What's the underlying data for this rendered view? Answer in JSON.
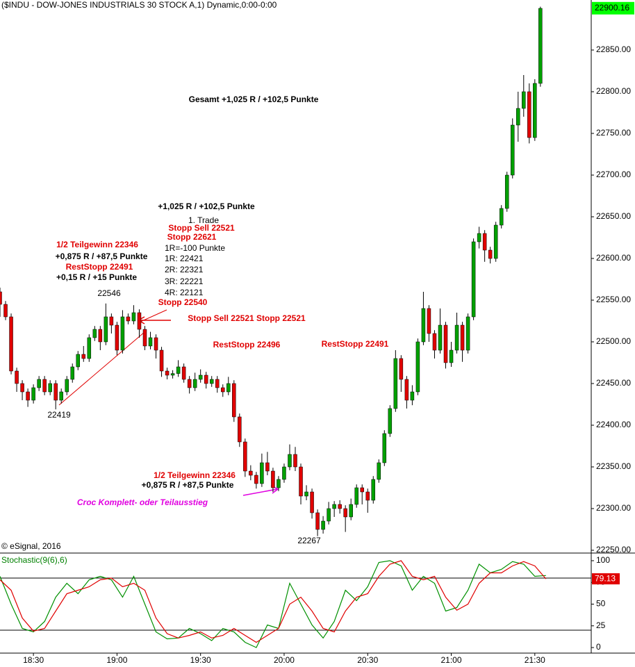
{
  "chart_data": [
    {
      "type": "candlestick",
      "title": "($INDU - DOW-JONES INDUSTRIALS 30 STOCK A,1) Dynamic,0:00-0:00",
      "up_color": "#00a000",
      "down_color": "#e00000",
      "wick_color": "#000000",
      "x": [
        "18:18",
        "18:20",
        "18:22",
        "18:24",
        "18:26",
        "18:28",
        "18:30",
        "18:32",
        "18:34",
        "18:36",
        "18:38",
        "18:40",
        "18:42",
        "18:44",
        "18:46",
        "18:48",
        "18:50",
        "18:52",
        "18:54",
        "18:56",
        "18:58",
        "19:00",
        "19:02",
        "19:04",
        "19:06",
        "19:08",
        "19:10",
        "19:12",
        "19:14",
        "19:16",
        "19:18",
        "19:20",
        "19:22",
        "19:24",
        "19:26",
        "19:28",
        "19:30",
        "19:32",
        "19:34",
        "19:36",
        "19:38",
        "19:40",
        "19:42",
        "19:44",
        "19:46",
        "19:48",
        "19:50",
        "19:52",
        "19:54",
        "19:56",
        "19:58",
        "20:00",
        "20:02",
        "20:04",
        "20:06",
        "20:08",
        "20:10",
        "20:12",
        "20:14",
        "20:16",
        "20:18",
        "20:20",
        "20:22",
        "20:24",
        "20:26",
        "20:28",
        "20:30",
        "20:32",
        "20:34",
        "20:36",
        "20:38",
        "20:40",
        "20:42",
        "20:44",
        "20:46",
        "20:48",
        "20:50",
        "20:52",
        "20:54",
        "20:56",
        "20:58",
        "21:00",
        "21:02",
        "21:04",
        "21:06",
        "21:08",
        "21:10",
        "21:12",
        "21:14",
        "21:16",
        "21:18",
        "21:20",
        "21:22",
        "21:24",
        "21:26",
        "21:28",
        "21:30",
        "21:32"
      ],
      "open": [
        22560,
        22545,
        22530,
        22465,
        22450,
        22440,
        22430,
        22445,
        22455,
        22440,
        22450,
        22430,
        22440,
        22455,
        22470,
        22485,
        22480,
        22505,
        22515,
        22500,
        22530,
        22520,
        22490,
        22530,
        22525,
        22535,
        22515,
        22495,
        22505,
        22490,
        22465,
        22460,
        22462,
        22470,
        22455,
        22445,
        22455,
        22460,
        22450,
        22455,
        22445,
        22440,
        22450,
        22410,
        22380,
        22345,
        22340,
        22330,
        22355,
        22345,
        22325,
        22335,
        22350,
        22365,
        22350,
        22315,
        22320,
        22295,
        22275,
        22285,
        22300,
        22305,
        22300,
        22290,
        22305,
        22325,
        22320,
        22310,
        22335,
        22355,
        22390,
        22420,
        22480,
        22455,
        22430,
        22440,
        22500,
        22540,
        22510,
        22490,
        22520,
        22475,
        22490,
        22520,
        22490,
        22530,
        22620,
        22630,
        22610,
        22600,
        22640,
        22660,
        22700,
        22760,
        22780,
        22800,
        22745,
        22810
      ],
      "high": [
        22565,
        22549,
        22534,
        22469,
        22454,
        22444,
        22449,
        22459,
        22459,
        22454,
        22454,
        22444,
        22459,
        22474,
        22489,
        22495,
        22509,
        22519,
        22519,
        22546,
        22534,
        22524,
        22538,
        22534,
        22544,
        22539,
        22519,
        22512,
        22509,
        22494,
        22469,
        22466,
        22478,
        22474,
        22459,
        22463,
        22467,
        22464,
        22459,
        22459,
        22449,
        22458,
        22454,
        22414,
        22384,
        22352,
        22344,
        22366,
        22368,
        22349,
        22339,
        22354,
        22377,
        22374,
        22354,
        22328,
        22324,
        22299,
        22291,
        22308,
        22309,
        22310,
        22304,
        22312,
        22329,
        22329,
        22324,
        22339,
        22359,
        22394,
        22424,
        22490,
        22484,
        22459,
        22448,
        22504,
        22560,
        22544,
        22514,
        22540,
        22524,
        22500,
        22535,
        22524,
        22534,
        22624,
        22638,
        22634,
        22614,
        22644,
        22664,
        22704,
        22768,
        22800,
        22820,
        22810,
        22815,
        22902
      ],
      "low": [
        22530,
        22526,
        22461,
        22440,
        22430,
        22422,
        22426,
        22441,
        22436,
        22436,
        22419,
        22426,
        22436,
        22451,
        22466,
        22476,
        22476,
        22501,
        22490,
        22496,
        22510,
        22484,
        22486,
        22521,
        22521,
        22505,
        22490,
        22491,
        22480,
        22458,
        22455,
        22456,
        22458,
        22451,
        22438,
        22441,
        22451,
        22444,
        22446,
        22439,
        22434,
        22436,
        22404,
        22374,
        22338,
        22334,
        22324,
        22326,
        22340,
        22320,
        22321,
        22331,
        22346,
        22345,
        22305,
        22310,
        22288,
        22267,
        22270,
        22281,
        22290,
        22294,
        22272,
        22286,
        22301,
        22305,
        22295,
        22306,
        22331,
        22351,
        22386,
        22416,
        22440,
        22420,
        22424,
        22436,
        22496,
        22500,
        22480,
        22486,
        22468,
        22470,
        22486,
        22476,
        22486,
        22526,
        22612,
        22596,
        22594,
        22596,
        22636,
        22656,
        22696,
        22740,
        22770,
        22738,
        22741,
        22806
      ],
      "close": [
        22545,
        22530,
        22465,
        22450,
        22440,
        22430,
        22445,
        22455,
        22440,
        22450,
        22430,
        22440,
        22455,
        22470,
        22485,
        22480,
        22505,
        22515,
        22500,
        22530,
        22520,
        22490,
        22530,
        22525,
        22535,
        22515,
        22495,
        22505,
        22490,
        22465,
        22460,
        22462,
        22470,
        22455,
        22445,
        22455,
        22460,
        22450,
        22455,
        22445,
        22440,
        22450,
        22410,
        22380,
        22345,
        22340,
        22330,
        22355,
        22345,
        22325,
        22335,
        22350,
        22365,
        22350,
        22315,
        22320,
        22295,
        22275,
        22285,
        22300,
        22305,
        22300,
        22290,
        22305,
        22325,
        22320,
        22310,
        22335,
        22355,
        22390,
        22420,
        22480,
        22455,
        22430,
        22440,
        22500,
        22540,
        22510,
        22490,
        22520,
        22475,
        22490,
        22520,
        22490,
        22530,
        22620,
        22630,
        22610,
        22600,
        22640,
        22660,
        22700,
        22760,
        22780,
        22800,
        22745,
        22810,
        22900
      ],
      "xlim": [
        "18:18",
        "21:50"
      ],
      "xticks": [
        "18:30",
        "19:00",
        "19:30",
        "20:00",
        "20:30",
        "21:00",
        "21:30"
      ],
      "ylim": [
        22247.5,
        22910
      ],
      "yticks": [
        {
          "value": 22250,
          "label": "22250.00"
        },
        {
          "value": 22300,
          "label": "22300.00"
        },
        {
          "value": 22350,
          "label": "22350.00"
        },
        {
          "value": 22400,
          "label": "22400.00"
        },
        {
          "value": 22450,
          "label": "22450.00"
        },
        {
          "value": 22500,
          "label": "22500.00"
        },
        {
          "value": 22550,
          "label": "22550.00"
        },
        {
          "value": 22600,
          "label": "22600.00"
        },
        {
          "value": 22650,
          "label": "22650.00"
        },
        {
          "value": 22700,
          "label": "22700.00"
        },
        {
          "value": 22750,
          "label": "22750.00"
        },
        {
          "value": 22800,
          "label": "22800.00"
        },
        {
          "value": 22850,
          "label": "22850.00"
        }
      ],
      "last_price": 22900.16,
      "last_price_color": "#00ff00",
      "annotations": [
        {
          "text": "Gesamt +1,025 R / +102,5 Punkte",
          "color": "#000000"
        },
        {
          "text": "+1,025 R / +102,5 Punkte",
          "color": "#000000"
        },
        {
          "text": "1. Trade",
          "color": "#000000"
        },
        {
          "text": "Stopp Sell 22521",
          "color": "#e00000"
        },
        {
          "text": "Stopp 22621",
          "color": "#e00000"
        },
        {
          "text": "1R=-100 Punkte",
          "color": "#000000"
        },
        {
          "text": "1R: 22421",
          "color": "#000000"
        },
        {
          "text": "2R: 22321",
          "color": "#000000"
        },
        {
          "text": "3R: 22221",
          "color": "#000000"
        },
        {
          "text": "4R: 22121",
          "color": "#000000"
        },
        {
          "text": "1/2 Teilgewinn 22346",
          "color": "#e00000"
        },
        {
          "text": "+0,875 R / +87,5 Punkte",
          "color": "#000000"
        },
        {
          "text": "RestStopp 22491",
          "color": "#e00000"
        },
        {
          "text": "+0,15 R / +15 Punkte",
          "color": "#000000"
        },
        {
          "text": "22546",
          "color": "#000000"
        },
        {
          "text": "Stopp 22540",
          "color": "#e00000"
        },
        {
          "text": "Stopp Sell 22521 Stopp 22521",
          "color": "#e00000"
        },
        {
          "text": "RestStopp 22496",
          "color": "#e00000"
        },
        {
          "text": "RestStopp 22491",
          "color": "#e00000"
        },
        {
          "text": "22419",
          "color": "#000000"
        },
        {
          "text": "1/2 Teilgewinn 22346",
          "color": "#e00000"
        },
        {
          "text": "+0,875 R / +87,5 Punkte",
          "color": "#000000"
        },
        {
          "text": "Croc Komplett- oder Teilausstieg",
          "color": "#e000e0"
        },
        {
          "text": "22267",
          "color": "#000000"
        },
        {
          "text": "© eSignal, 2016",
          "color": "#000000"
        }
      ]
    },
    {
      "type": "line",
      "title": "Stochastic(9(6),6)",
      "title_color": "#008000",
      "x": [
        "18:18",
        "18:22",
        "18:26",
        "18:30",
        "18:34",
        "18:38",
        "18:42",
        "18:46",
        "18:50",
        "18:54",
        "18:58",
        "19:02",
        "19:06",
        "19:10",
        "19:14",
        "19:18",
        "19:22",
        "19:26",
        "19:30",
        "19:34",
        "19:38",
        "19:42",
        "19:46",
        "19:50",
        "19:54",
        "19:58",
        "20:02",
        "20:06",
        "20:10",
        "20:14",
        "20:18",
        "20:22",
        "20:26",
        "20:30",
        "20:34",
        "20:38",
        "20:42",
        "20:46",
        "20:50",
        "20:54",
        "20:58",
        "21:02",
        "21:06",
        "21:10",
        "21:14",
        "21:18",
        "21:22",
        "21:26",
        "21:30",
        "21:34"
      ],
      "series": [
        {
          "color": "#009000",
          "values": [
            82,
            50,
            22,
            18,
            30,
            58,
            74,
            62,
            78,
            82,
            78,
            58,
            82,
            50,
            18,
            10,
            11,
            22,
            16,
            8,
            22,
            18,
            6,
            0,
            26,
            22,
            74,
            50,
            26,
            11,
            30,
            66,
            54,
            70,
            98,
            100,
            94,
            66,
            82,
            74,
            42,
            46,
            66,
            96,
            86,
            90,
            99,
            96,
            82,
            83
          ]
        },
        {
          "color": "#e00000",
          "values": [
            78,
            66,
            34,
            19,
            22,
            42,
            62,
            66,
            70,
            78,
            80,
            70,
            74,
            66,
            34,
            16,
            11,
            14,
            18,
            11,
            14,
            22,
            14,
            6,
            14,
            22,
            50,
            58,
            42,
            22,
            18,
            42,
            58,
            62,
            82,
            96,
            100,
            82,
            78,
            82,
            58,
            43,
            50,
            74,
            86,
            86,
            94,
            99,
            94,
            79.13
          ]
        }
      ],
      "xlim": [
        "18:18",
        "21:50"
      ],
      "ylim": [
        -6.4,
        108
      ],
      "yticks": [
        0,
        25,
        50,
        75,
        100
      ],
      "levels": [
        20,
        80
      ]
    }
  ]
}
